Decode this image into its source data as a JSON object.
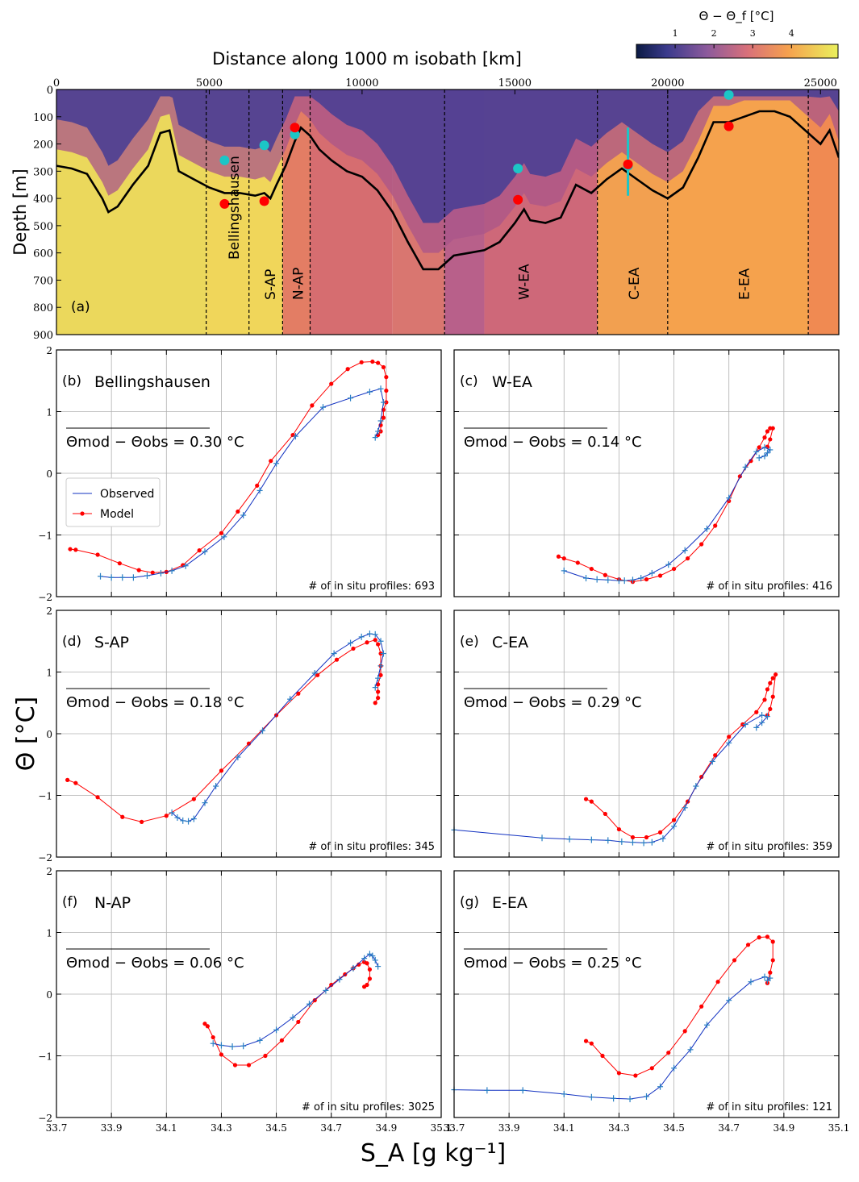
{
  "top": {
    "title": "Distance along 1000 m isobath [km]",
    "ylabel": "Depth [m]",
    "panel_label": "(a)",
    "colorbar_label": "Θ − Θ_f [°C]",
    "colorbar_ticks": [
      "1",
      "2",
      "3",
      "4"
    ],
    "x_ticks": [
      "0",
      "5000",
      "10000",
      "15000",
      "20000",
      "25000"
    ],
    "y_ticks": [
      "0",
      "100",
      "200",
      "300",
      "400",
      "500",
      "600",
      "700",
      "800",
      "900"
    ],
    "regions": [
      "Bellingshausen",
      "S-AP",
      "N-AP",
      "W-EA",
      "C-EA",
      "E-EA"
    ]
  },
  "axes": {
    "xlabel": "S_A [g kg⁻¹]",
    "ylabel": "Θ [°C]",
    "x_ticks": [
      "33.7",
      "33.9",
      "34.1",
      "34.3",
      "34.5",
      "34.7",
      "34.9",
      "35.1"
    ],
    "y_ticks": [
      "−2",
      "−1",
      "0",
      "1",
      "2"
    ]
  },
  "legend": {
    "observed": "Observed",
    "model": "Model"
  },
  "profiles_label": "# of in situ profiles:",
  "chart_data": [
    {
      "type": "heatmap",
      "panel": "a",
      "x_range_km": [
        0,
        25600
      ],
      "y_range_m": [
        900,
        0
      ],
      "colorbar_range_C": [
        0,
        5.2
      ],
      "region_boundaries_km": [
        4900,
        6300,
        7400,
        8300,
        12700,
        17700,
        20000,
        24600
      ],
      "region_label_positions_km": [
        5800,
        7000,
        7900,
        15300,
        18900,
        22500
      ],
      "black_line": {
        "x_km": [
          0,
          500,
          1000,
          1500,
          1700,
          2000,
          2500,
          3000,
          3400,
          3700,
          3800,
          4000,
          4500,
          5000,
          5500,
          6000,
          6500,
          6800,
          7000,
          7200,
          7500,
          7800,
          8000,
          8300,
          8600,
          9000,
          9500,
          10000,
          10500,
          11000,
          11500,
          12000,
          12500,
          13000,
          13500,
          14000,
          14500,
          15000,
          15300,
          15500,
          16000,
          16500,
          17000,
          17500,
          18000,
          18500,
          19000,
          19500,
          20000,
          20500,
          21000,
          21500,
          22000,
          22500,
          23000,
          23500,
          24000,
          24500,
          25000,
          25300,
          25600
        ],
        "y_m": [
          280,
          290,
          310,
          400,
          450,
          430,
          350,
          280,
          160,
          150,
          200,
          300,
          330,
          360,
          380,
          380,
          390,
          380,
          400,
          350,
          280,
          190,
          140,
          170,
          220,
          260,
          300,
          320,
          370,
          450,
          560,
          660,
          660,
          610,
          600,
          590,
          560,
          490,
          440,
          480,
          490,
          470,
          350,
          380,
          330,
          290,
          330,
          370,
          400,
          360,
          250,
          120,
          120,
          100,
          80,
          80,
          100,
          150,
          200,
          150,
          250
        ]
      },
      "red_dots": {
        "x_km": [
          5500,
          6800,
          7800,
          15100,
          18700,
          22000
        ],
        "y_m": [
          420,
          410,
          140,
          405,
          275,
          135
        ]
      },
      "cyan_dots": {
        "x_km": [
          5500,
          6800,
          7800,
          15100,
          18700,
          22000
        ],
        "y_m": [
          260,
          205,
          165,
          290,
          280,
          20
        ]
      },
      "cyan_bar": {
        "x_km": 18700,
        "y_m": [
          140,
          390
        ]
      }
    },
    {
      "type": "line",
      "panel": "b",
      "panel_label": "(b)",
      "title": "Bellingshausen",
      "annotation": "Θmod − Θobs = 0.30 °C",
      "profiles": "693",
      "show_legend": true,
      "observed": {
        "x": [
          33.86,
          33.9,
          33.94,
          33.98,
          34.03,
          34.08,
          34.12,
          34.17,
          34.24,
          34.31,
          34.38,
          34.44,
          34.5,
          34.57,
          34.67,
          34.77,
          34.84,
          34.88,
          34.89,
          34.88,
          34.87,
          34.86
        ],
        "y": [
          -1.67,
          -1.69,
          -1.69,
          -1.69,
          -1.66,
          -1.62,
          -1.58,
          -1.5,
          -1.27,
          -1.03,
          -0.68,
          -0.28,
          0.16,
          0.6,
          1.07,
          1.22,
          1.32,
          1.37,
          1.15,
          0.85,
          0.68,
          0.58
        ]
      },
      "model": {
        "x": [
          33.75,
          33.77,
          33.85,
          33.93,
          34.0,
          34.05,
          34.1,
          34.16,
          34.22,
          34.3,
          34.36,
          34.43,
          34.48,
          34.56,
          34.63,
          34.7,
          34.76,
          34.81,
          34.85,
          34.87,
          34.89,
          34.9,
          34.9,
          34.9,
          34.89,
          34.89,
          34.88,
          34.88,
          34.87
        ],
        "y": [
          -1.23,
          -1.24,
          -1.32,
          -1.46,
          -1.57,
          -1.61,
          -1.6,
          -1.49,
          -1.25,
          -0.97,
          -0.62,
          -0.2,
          0.2,
          0.62,
          1.1,
          1.45,
          1.69,
          1.8,
          1.81,
          1.79,
          1.72,
          1.56,
          1.34,
          1.15,
          1.03,
          0.9,
          0.78,
          0.68,
          0.62
        ]
      }
    },
    {
      "type": "line",
      "panel": "c",
      "panel_label": "(c)",
      "title": "W-EA",
      "annotation": "Θmod − Θobs = 0.14 °C",
      "profiles": "416",
      "show_legend": false,
      "observed": {
        "x": [
          34.1,
          34.18,
          34.22,
          34.26,
          34.3,
          34.32,
          34.35,
          34.38,
          34.42,
          34.48,
          34.54,
          34.62,
          34.7,
          34.76,
          34.8,
          34.83,
          34.85,
          34.84,
          34.83,
          34.81
        ],
        "y": [
          -1.58,
          -1.7,
          -1.72,
          -1.73,
          -1.74,
          -1.74,
          -1.73,
          -1.7,
          -1.62,
          -1.48,
          -1.25,
          -0.9,
          -0.4,
          0.1,
          0.35,
          0.42,
          0.38,
          0.33,
          0.28,
          0.25
        ]
      },
      "model": {
        "x": [
          34.08,
          34.1,
          34.15,
          34.2,
          34.25,
          34.3,
          34.35,
          34.4,
          34.45,
          34.5,
          34.55,
          34.6,
          34.65,
          34.7,
          34.74,
          34.78,
          34.81,
          34.83,
          34.84,
          34.85,
          34.86,
          34.85,
          34.84
        ],
        "y": [
          -1.35,
          -1.38,
          -1.45,
          -1.55,
          -1.65,
          -1.72,
          -1.76,
          -1.72,
          -1.66,
          -1.55,
          -1.38,
          -1.15,
          -0.85,
          -0.45,
          -0.05,
          0.2,
          0.42,
          0.58,
          0.68,
          0.73,
          0.73,
          0.55,
          0.43
        ]
      }
    },
    {
      "type": "line",
      "panel": "d",
      "panel_label": "(d)",
      "title": "S-AP",
      "annotation": "Θmod − Θobs = 0.18 °C",
      "profiles": "345",
      "show_legend": false,
      "observed": {
        "x": [
          34.12,
          34.14,
          34.16,
          34.18,
          34.2,
          34.24,
          34.28,
          34.36,
          34.45,
          34.55,
          34.64,
          34.71,
          34.77,
          34.81,
          34.84,
          34.86,
          34.88,
          34.89,
          34.88,
          34.87,
          34.86
        ],
        "y": [
          -1.28,
          -1.36,
          -1.41,
          -1.42,
          -1.38,
          -1.12,
          -0.85,
          -0.38,
          0.05,
          0.56,
          0.98,
          1.3,
          1.47,
          1.57,
          1.62,
          1.61,
          1.5,
          1.3,
          1.1,
          0.9,
          0.75
        ]
      },
      "model": {
        "x": [
          33.74,
          33.77,
          33.85,
          33.94,
          34.01,
          34.1,
          34.2,
          34.3,
          34.4,
          34.5,
          34.58,
          34.65,
          34.72,
          34.78,
          34.83,
          34.86,
          34.87,
          34.88,
          34.88,
          34.88,
          34.87,
          34.87,
          34.87,
          34.86
        ],
        "y": [
          -0.75,
          -0.8,
          -1.03,
          -1.35,
          -1.43,
          -1.33,
          -1.06,
          -0.6,
          -0.16,
          0.3,
          0.65,
          0.95,
          1.2,
          1.38,
          1.48,
          1.52,
          1.45,
          1.3,
          1.1,
          0.95,
          0.8,
          0.68,
          0.58,
          0.5
        ]
      }
    },
    {
      "type": "line",
      "panel": "e",
      "panel_label": "(e)",
      "title": "C-EA",
      "annotation": "Θmod − Θobs = 0.29 °C",
      "profiles": "359",
      "show_legend": false,
      "observed": {
        "x": [
          33.7,
          34.02,
          34.12,
          34.2,
          34.26,
          34.31,
          34.35,
          34.39,
          34.42,
          34.46,
          34.5,
          34.54,
          34.58,
          34.64,
          34.7,
          34.76,
          34.82,
          34.84,
          34.82,
          34.8
        ],
        "y": [
          -1.56,
          -1.69,
          -1.71,
          -1.72,
          -1.73,
          -1.75,
          -1.76,
          -1.77,
          -1.76,
          -1.7,
          -1.5,
          -1.2,
          -0.85,
          -0.45,
          -0.15,
          0.15,
          0.3,
          0.28,
          0.18,
          0.1
        ]
      },
      "model": {
        "x": [
          34.18,
          34.2,
          34.25,
          34.3,
          34.35,
          34.4,
          34.45,
          34.5,
          34.55,
          34.6,
          34.65,
          34.7,
          34.75,
          34.8,
          34.83,
          34.84,
          34.85,
          34.86,
          34.87,
          34.86,
          34.85,
          34.84
        ],
        "y": [
          -1.06,
          -1.1,
          -1.3,
          -1.55,
          -1.68,
          -1.68,
          -1.6,
          -1.4,
          -1.1,
          -0.7,
          -0.35,
          -0.05,
          0.15,
          0.35,
          0.55,
          0.72,
          0.82,
          0.9,
          0.96,
          0.6,
          0.4,
          0.3
        ]
      }
    },
    {
      "type": "line",
      "panel": "f",
      "panel_label": "(f)",
      "title": "N-AP",
      "annotation": "Θmod − Θobs = 0.06 °C",
      "profiles": "3025",
      "show_legend": false,
      "observed": {
        "x": [
          34.27,
          34.3,
          34.34,
          34.38,
          34.44,
          34.5,
          34.56,
          34.62,
          34.68,
          34.73,
          34.78,
          34.82,
          34.84,
          34.85,
          34.86,
          34.87
        ],
        "y": [
          -0.8,
          -0.83,
          -0.85,
          -0.84,
          -0.75,
          -0.58,
          -0.38,
          -0.16,
          0.06,
          0.24,
          0.42,
          0.58,
          0.65,
          0.62,
          0.55,
          0.45
        ]
      },
      "model": {
        "x": [
          34.24,
          34.25,
          34.27,
          34.3,
          34.35,
          34.4,
          34.46,
          34.52,
          34.58,
          34.64,
          34.7,
          34.75,
          34.78,
          34.8,
          34.82,
          34.83,
          34.84,
          34.84,
          34.83,
          34.82
        ],
        "y": [
          -0.48,
          -0.52,
          -0.7,
          -0.98,
          -1.15,
          -1.15,
          -1.0,
          -0.75,
          -0.45,
          -0.1,
          0.15,
          0.32,
          0.42,
          0.48,
          0.52,
          0.5,
          0.4,
          0.25,
          0.15,
          0.12
        ]
      }
    },
    {
      "type": "line",
      "panel": "g",
      "panel_label": "(g)",
      "title": "E-EA",
      "annotation": "Θmod − Θobs = 0.25 °C",
      "profiles": "121",
      "show_legend": false,
      "observed": {
        "x": [
          33.7,
          33.82,
          33.95,
          34.1,
          34.2,
          34.28,
          34.34,
          34.4,
          34.45,
          34.5,
          34.56,
          34.62,
          34.7,
          34.78,
          34.83,
          34.85,
          34.84
        ],
        "y": [
          -1.55,
          -1.56,
          -1.56,
          -1.62,
          -1.67,
          -1.69,
          -1.7,
          -1.66,
          -1.5,
          -1.2,
          -0.9,
          -0.5,
          -0.1,
          0.2,
          0.28,
          0.26,
          0.22
        ]
      },
      "model": {
        "x": [
          34.18,
          34.2,
          34.24,
          34.3,
          34.36,
          34.42,
          34.48,
          34.54,
          34.6,
          34.66,
          34.72,
          34.77,
          34.81,
          34.84,
          34.86,
          34.86,
          34.85,
          34.84
        ],
        "y": [
          -0.76,
          -0.8,
          -1.0,
          -1.28,
          -1.32,
          -1.2,
          -0.95,
          -0.6,
          -0.2,
          0.2,
          0.55,
          0.8,
          0.92,
          0.93,
          0.85,
          0.55,
          0.35,
          0.18
        ]
      }
    }
  ]
}
